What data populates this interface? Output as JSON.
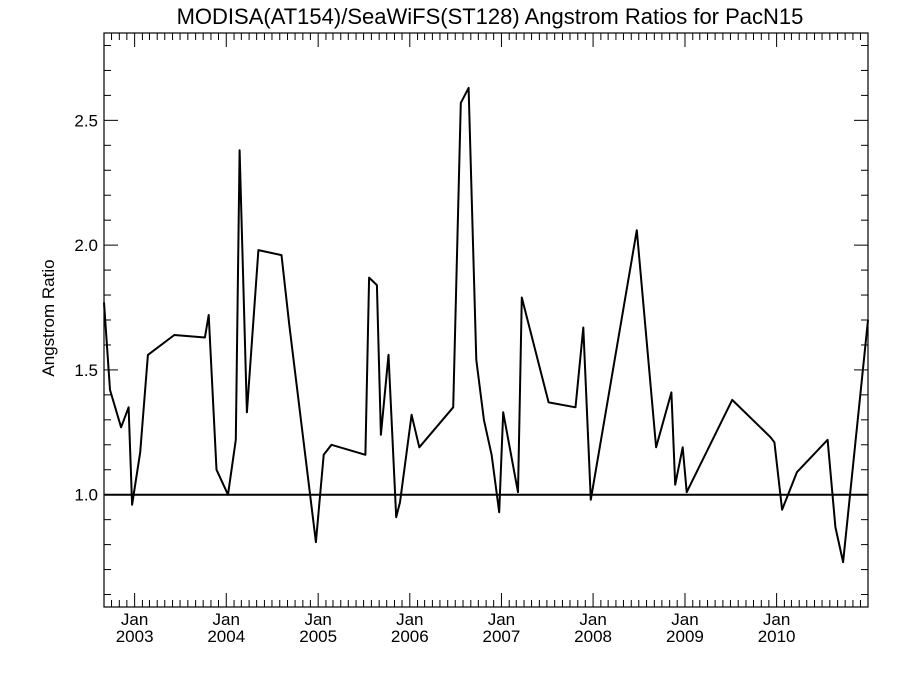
{
  "chart_data": {
    "type": "line",
    "title": "MODISA(AT154)/SeaWiFS(ST128)  Angstrom Ratios for PacN15",
    "xlabel": "",
    "ylabel": "Angstrom Ratio",
    "xlim": [
      "2002-09-01",
      "2010-12-31"
    ],
    "ylim": [
      0.55,
      2.85
    ],
    "yticks": [
      1.0,
      1.5,
      2.0,
      2.5
    ],
    "yticks_labels": [
      "1.0",
      "1.5",
      "2.0",
      "2.5"
    ],
    "xticks": [
      {
        "month": "Jan",
        "year": "2003",
        "date": "2003-01-01"
      },
      {
        "month": "Jan",
        "year": "2004",
        "date": "2004-01-01"
      },
      {
        "month": "Jan",
        "year": "2005",
        "date": "2005-01-01"
      },
      {
        "month": "Jan",
        "year": "2006",
        "date": "2006-01-01"
      },
      {
        "month": "Jan",
        "year": "2007",
        "date": "2007-01-01"
      },
      {
        "month": "Jan",
        "year": "2008",
        "date": "2008-01-01"
      },
      {
        "month": "Jan",
        "year": "2009",
        "date": "2009-01-01"
      },
      {
        "month": "Jan",
        "year": "2010",
        "date": "2010-01-01"
      }
    ],
    "reference_line": 1.0,
    "grid": false,
    "series": [
      {
        "x": [
          "2002-09-01",
          "2002-09-25",
          "2002-11-08",
          "2002-12-08",
          "2002-12-22",
          "2003-01-23",
          "2003-02-23",
          "2003-06-08",
          "2003-10-08",
          "2003-10-23",
          "2003-11-23",
          "2004-01-08",
          "2004-02-08",
          "2004-02-23",
          "2004-03-23",
          "2004-05-08",
          "2004-08-08",
          "2004-09-08",
          "2004-12-23",
          "2005-01-23",
          "2005-02-23",
          "2005-07-08",
          "2005-07-23",
          "2005-08-23",
          "2005-09-08",
          "2005-10-08",
          "2005-11-08",
          "2005-11-23",
          "2006-01-08",
          "2006-02-08",
          "2006-06-23",
          "2006-07-23",
          "2006-08-23",
          "2006-09-23",
          "2006-10-23",
          "2006-11-23",
          "2006-12-23",
          "2007-01-08",
          "2007-03-08",
          "2007-03-23",
          "2007-07-08",
          "2007-10-23",
          "2007-11-23",
          "2007-12-23",
          "2008-06-23",
          "2008-09-08",
          "2008-11-08",
          "2008-11-23",
          "2008-12-23",
          "2009-01-08",
          "2009-07-08",
          "2009-12-08",
          "2009-12-23",
          "2010-01-23",
          "2010-03-23",
          "2010-07-23",
          "2010-08-23",
          "2010-09-23",
          "2010-12-31"
        ],
        "values": [
          1.77,
          1.42,
          1.27,
          1.35,
          0.96,
          1.17,
          1.56,
          1.64,
          1.63,
          1.72,
          1.1,
          1.0,
          1.22,
          2.38,
          1.33,
          1.98,
          1.96,
          1.68,
          0.81,
          1.16,
          1.2,
          1.16,
          1.87,
          1.84,
          1.24,
          1.56,
          0.91,
          0.97,
          1.32,
          1.19,
          1.35,
          2.57,
          2.63,
          1.54,
          1.3,
          1.16,
          0.93,
          1.33,
          1.01,
          1.79,
          1.37,
          1.35,
          1.67,
          0.98,
          2.06,
          1.19,
          1.41,
          1.04,
          1.19,
          1.01,
          1.38,
          1.23,
          1.21,
          0.94,
          1.09,
          1.22,
          0.87,
          0.73,
          1.7
        ]
      }
    ]
  }
}
